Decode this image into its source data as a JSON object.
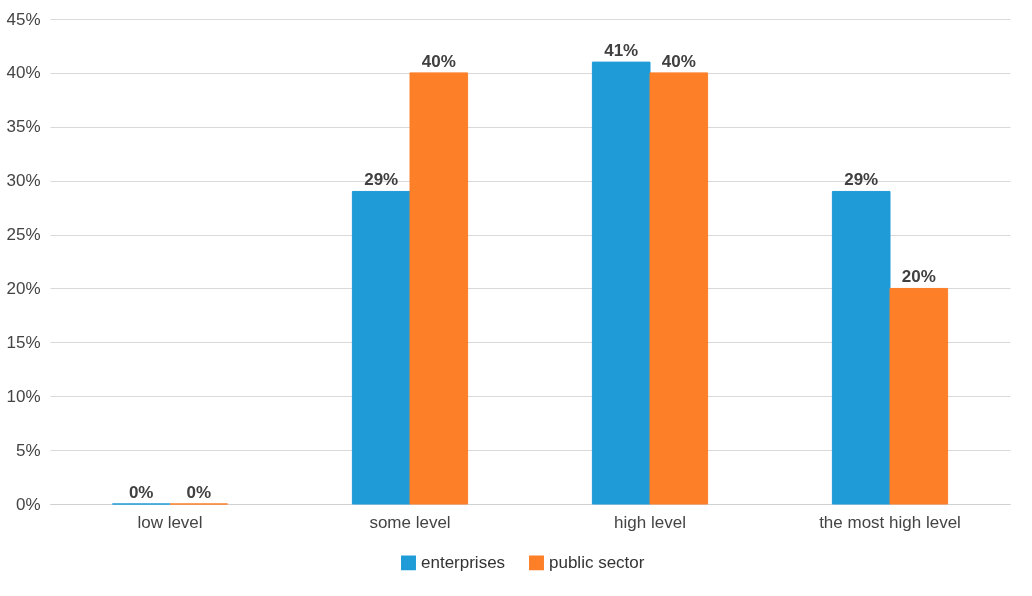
{
  "chart_data": {
    "type": "bar",
    "categories": [
      "low level",
      "some level",
      "high level",
      "the most high level"
    ],
    "series": [
      {
        "name": "enterprises",
        "color": "#1f9bd7",
        "values": [
          0,
          29,
          41,
          29
        ],
        "value_labels": [
          "0%",
          "29%",
          "41%",
          "29%"
        ]
      },
      {
        "name": "public sector",
        "color": "#fd7f28",
        "values": [
          0,
          40,
          40,
          20
        ],
        "value_labels": [
          "0%",
          "40%",
          "40%",
          "20%"
        ]
      }
    ],
    "ylim": [
      0,
      45
    ],
    "yticks": [
      {
        "value": 0,
        "label": "0%"
      },
      {
        "value": 5,
        "label": "5%"
      },
      {
        "value": 10,
        "label": "10%"
      },
      {
        "value": 15,
        "label": "15%"
      },
      {
        "value": 20,
        "label": "20%"
      },
      {
        "value": 25,
        "label": "25%"
      },
      {
        "value": 30,
        "label": "30%"
      },
      {
        "value": 35,
        "label": "35%"
      },
      {
        "value": 40,
        "label": "40%"
      },
      {
        "value": 45,
        "label": "45%"
      }
    ],
    "grid": "y",
    "legend": "bottom"
  }
}
